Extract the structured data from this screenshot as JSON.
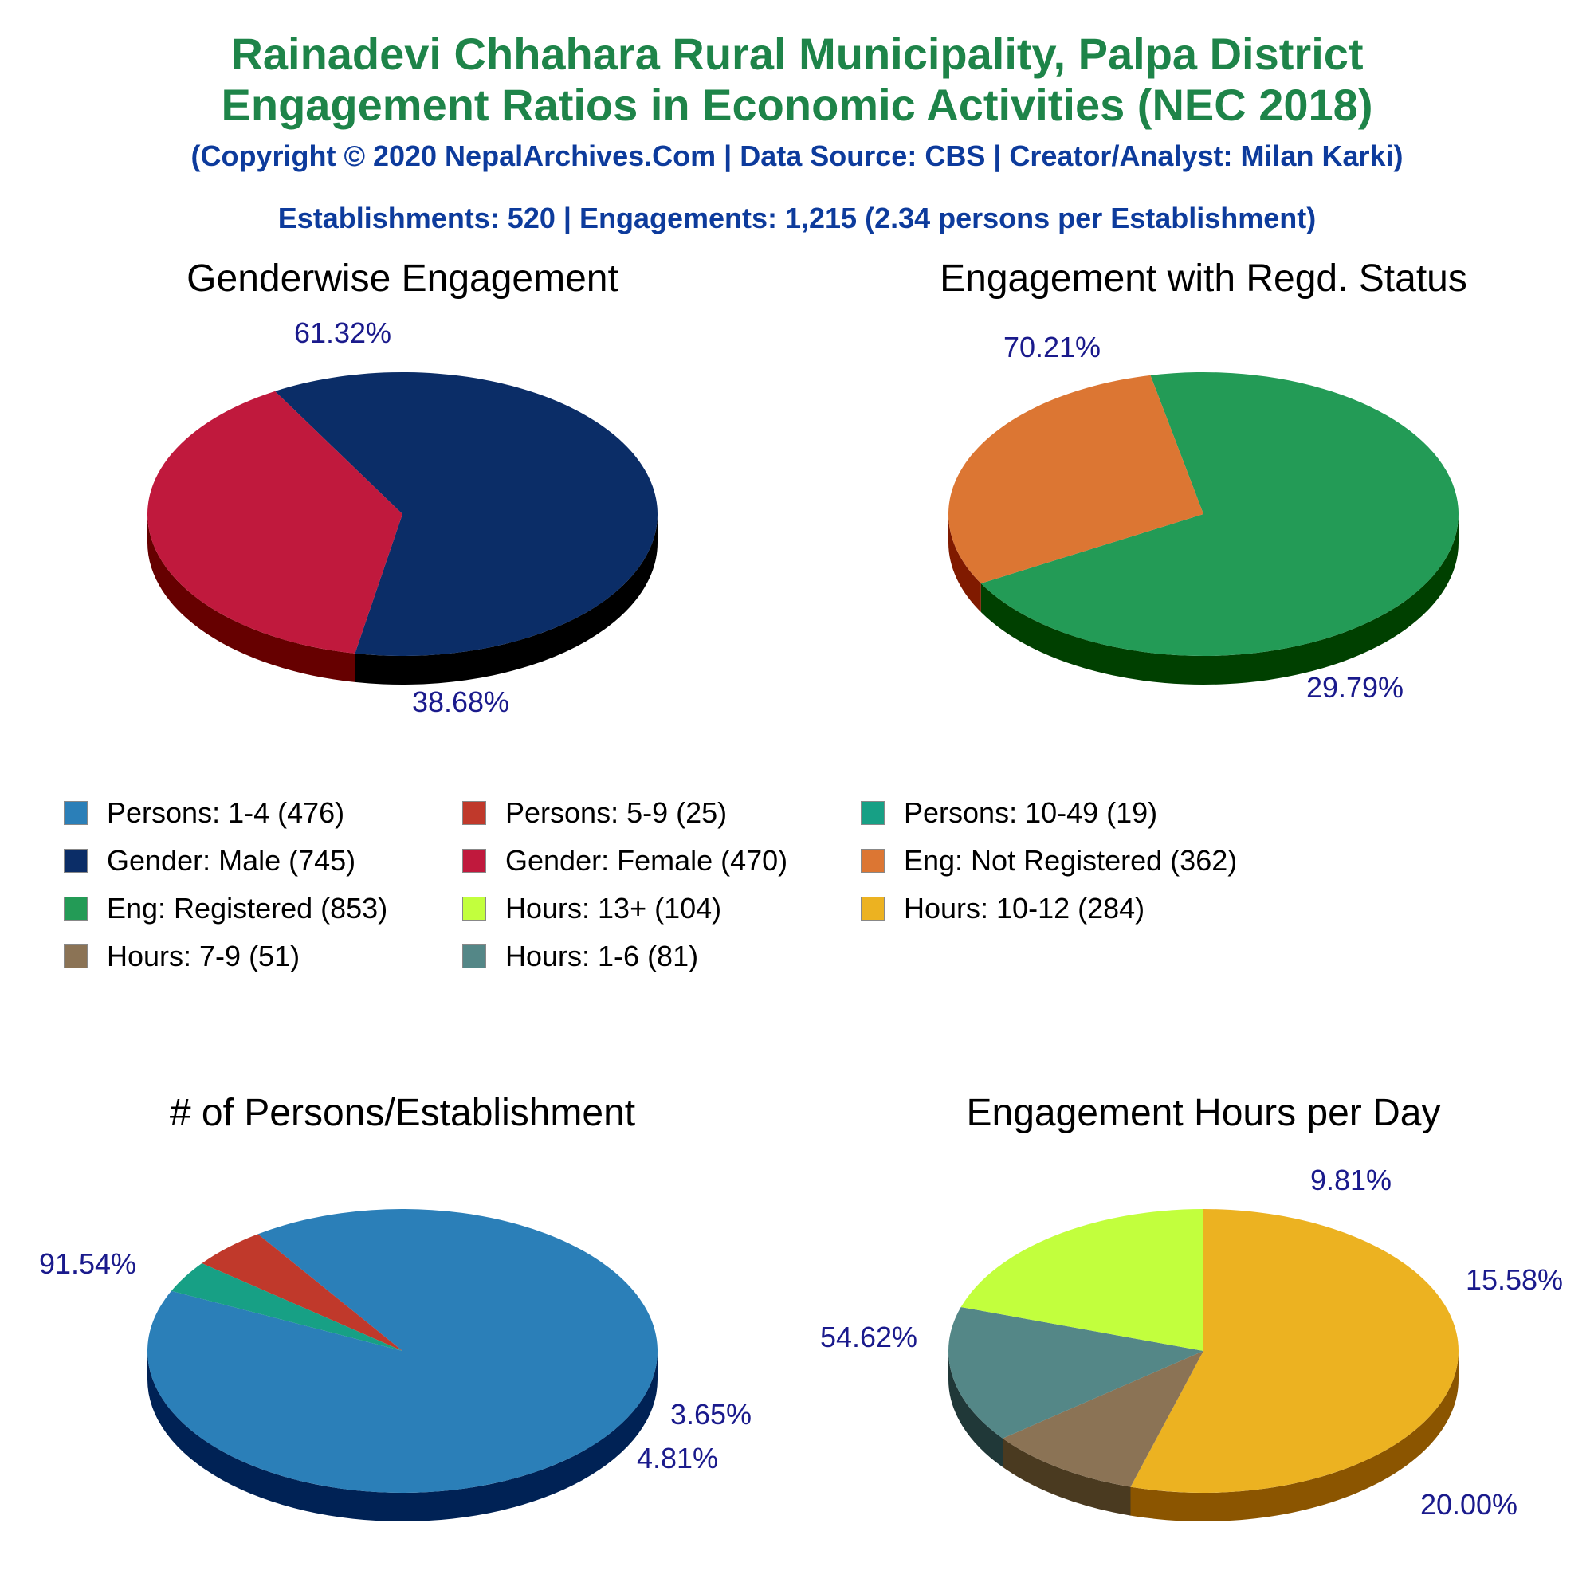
{
  "header": {
    "title_line1": "Rainadevi Chhahara Rural Municipality, Palpa District",
    "title_line2": "Engagement Ratios in Economic Activities (NEC 2018)",
    "copyright": "(Copyright © 2020 NepalArchives.Com | Data Source: CBS | Creator/Analyst: Milan Karki)",
    "summary": "Establishments: 520 | Engagements: 1,215 (2.34 persons per Establishment)"
  },
  "colors": {
    "title": "#1e8449",
    "subtitle": "#0d3b9c",
    "pct_label": "#1a1a8c"
  },
  "legend": [
    {
      "label": "Persons: 1-4 (476)",
      "color": "#2b7fb8"
    },
    {
      "label": "Persons: 5-9 (25)",
      "color": "#c0392b"
    },
    {
      "label": "Persons: 10-49 (19)",
      "color": "#17a085"
    },
    {
      "label": "Gender: Male (745)",
      "color": "#0b2d67"
    },
    {
      "label": "Gender: Female (470)",
      "color": "#c0193d"
    },
    {
      "label": "Eng: Not Registered (362)",
      "color": "#dc7633"
    },
    {
      "label": "Eng: Registered (853)",
      "color": "#239b56"
    },
    {
      "label": "Hours: 13+ (104)",
      "color": "#c2ff3d"
    },
    {
      "label": "Hours: 10-12 (284)",
      "color": "#ecb221"
    },
    {
      "label": "Hours: 7-9 (51)",
      "color": "#8b7355"
    },
    {
      "label": "Hours: 1-6 (81)",
      "color": "#548787"
    }
  ],
  "chart_data": [
    {
      "type": "pie",
      "title": "Genderwise Engagement",
      "slices": [
        {
          "name": "Gender: Male",
          "value": 745,
          "label": "61.32%",
          "color": "#0b2d67",
          "side": "#000000"
        },
        {
          "name": "Gender: Female",
          "value": 470,
          "label": "38.68%",
          "color": "#c0193d",
          "side": "#660000"
        }
      ]
    },
    {
      "type": "pie",
      "title": "Engagement with Regd. Status",
      "slices": [
        {
          "name": "Eng: Registered",
          "value": 853,
          "label": "70.21%",
          "color": "#239b56",
          "side": "#004000"
        },
        {
          "name": "Eng: Not Registered",
          "value": 362,
          "label": "29.79%",
          "color": "#dc7633",
          "side": "#801a00"
        }
      ]
    },
    {
      "type": "pie",
      "title": "# of Persons/Establishment",
      "slices": [
        {
          "name": "Persons: 1-4",
          "value": 476,
          "label": "91.54%",
          "color": "#2b7fb8",
          "side": "#002255"
        },
        {
          "name": "Persons: 5-9",
          "value": 25,
          "label": "4.81%",
          "color": "#c0392b",
          "side": "#660000"
        },
        {
          "name": "Persons: 10-49",
          "value": 19,
          "label": "3.65%",
          "color": "#17a085",
          "side": "#004433"
        }
      ]
    },
    {
      "type": "pie",
      "title": "Engagement Hours per Day",
      "slices": [
        {
          "name": "Hours: 10-12",
          "value": 284,
          "label": "54.62%",
          "color": "#ecb221",
          "side": "#8b5500"
        },
        {
          "name": "Hours: 7-9",
          "value": 51,
          "label": "9.81%",
          "color": "#8b7355",
          "side": "#4a3a20"
        },
        {
          "name": "Hours: 1-6",
          "value": 81,
          "label": "15.58%",
          "color": "#548787",
          "side": "#203838"
        },
        {
          "name": "Hours: 13+",
          "value": 104,
          "label": "20.00%",
          "color": "#c2ff3d",
          "side": "#66a300"
        }
      ]
    }
  ]
}
